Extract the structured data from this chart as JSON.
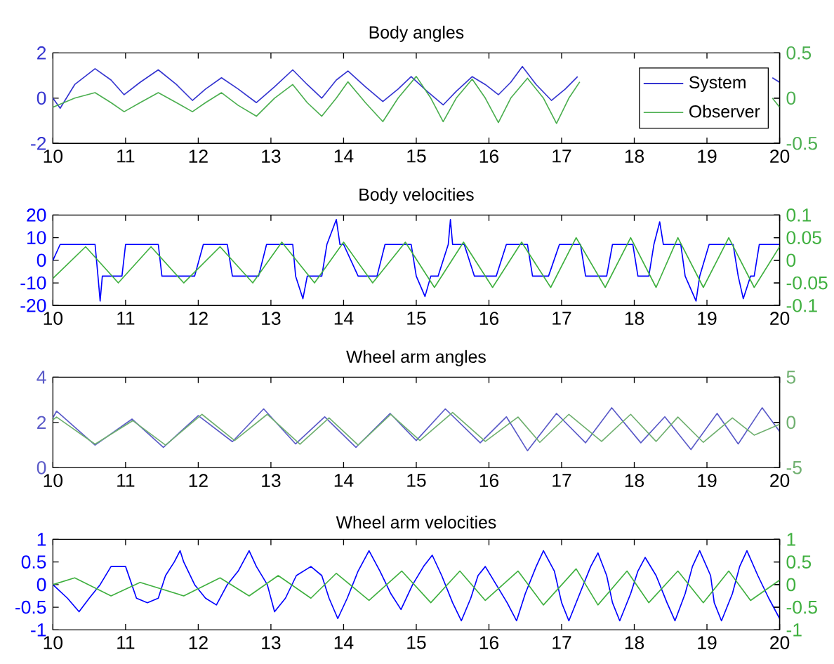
{
  "chart_data": [
    {
      "type": "line",
      "title": "Body angles",
      "xlim": [
        10,
        20
      ],
      "xticks": [
        10,
        11,
        12,
        13,
        14,
        15,
        16,
        17,
        18,
        19,
        20
      ],
      "ylim": [
        -2,
        2
      ],
      "yticks": [
        -2,
        0,
        2
      ],
      "y2lim": [
        -0.5,
        0.5
      ],
      "y2ticks": [
        -0.5,
        0,
        0.5
      ],
      "legend": "right",
      "series": [
        {
          "name": "System",
          "color": "#3535d0",
          "x": [
            10,
            10.1,
            10.3,
            10.58,
            10.8,
            10.98,
            11.2,
            11.45,
            11.7,
            11.92,
            12.1,
            12.32,
            12.55,
            12.8,
            13.05,
            13.3,
            13.5,
            13.7,
            13.9,
            14.06,
            14.3,
            14.54,
            14.75,
            14.93,
            15.15,
            15.37,
            15.55,
            15.77,
            15.95,
            16.13,
            16.3,
            16.46,
            16.65,
            16.86,
            17.05,
            17.22,
            17.6,
            18.5,
            19.4,
            19.9,
            20
          ],
          "values": [
            0,
            -0.45,
            0.6,
            1.3,
            0.8,
            0.15,
            0.7,
            1.25,
            0.6,
            -0.1,
            0.4,
            0.9,
            0.4,
            -0.2,
            0.5,
            1.25,
            0.6,
            0,
            0.8,
            1.2,
            0.5,
            -0.15,
            0.4,
            0.95,
            0.3,
            -0.3,
            0.3,
            0.95,
            0.6,
            0.15,
            0.7,
            1.4,
            0.6,
            -0.1,
            0.4,
            0.95,
            null,
            null,
            null,
            0.9,
            0.7
          ]
        },
        {
          "name": "Observer",
          "color": "#4caf50",
          "axis": "y2",
          "x": [
            10,
            10.3,
            10.58,
            10.8,
            10.98,
            11.2,
            11.45,
            11.7,
            11.92,
            12.1,
            12.32,
            12.55,
            12.8,
            13.05,
            13.3,
            13.5,
            13.7,
            13.9,
            14.06,
            14.3,
            14.54,
            14.75,
            15.0,
            15.2,
            15.37,
            15.55,
            15.77,
            15.95,
            16.13,
            16.3,
            16.53,
            16.75,
            16.93,
            17.1,
            17.25,
            17.6,
            18.5,
            19.4,
            19.9,
            20
          ],
          "values": [
            -0.1,
            0.0,
            0.06,
            -0.05,
            -0.15,
            -0.05,
            0.06,
            -0.05,
            -0.15,
            -0.05,
            0.06,
            -0.08,
            -0.2,
            0.0,
            0.15,
            -0.05,
            -0.2,
            0.0,
            0.18,
            -0.05,
            -0.26,
            0.0,
            0.24,
            0.0,
            -0.26,
            0.0,
            0.21,
            0.0,
            -0.27,
            0.0,
            0.22,
            0.0,
            -0.28,
            0.0,
            0.18,
            null,
            null,
            null,
            0.0,
            -0.1
          ]
        }
      ]
    },
    {
      "type": "line",
      "title": "Body velocities",
      "xlim": [
        10,
        20
      ],
      "xticks": [
        10,
        11,
        12,
        13,
        14,
        15,
        16,
        17,
        18,
        19,
        20
      ],
      "ylim": [
        -20,
        20
      ],
      "yticks": [
        -20,
        -10,
        0,
        10,
        20
      ],
      "y2lim": [
        -0.1,
        0.1
      ],
      "y2ticks": [
        -0.1,
        -0.05,
        0,
        0.05,
        0.1
      ],
      "series": [
        {
          "color": "#0000ff",
          "x": [
            10,
            10.1,
            10.58,
            10.62,
            10.65,
            10.68,
            10.95,
            11,
            11.45,
            11.5,
            11.95,
            12.07,
            12.4,
            12.47,
            12.83,
            12.94,
            13.3,
            13.34,
            13.44,
            13.5,
            13.7,
            13.77,
            13.9,
            13.95,
            14,
            14.1,
            14.2,
            14.46,
            14.57,
            14.93,
            15,
            15.12,
            15.2,
            15.3,
            15.44,
            15.47,
            15.5,
            15.66,
            15.8,
            16.1,
            16.24,
            16.53,
            16.6,
            16.82,
            16.97,
            17.26,
            17.33,
            17.62,
            17.7,
            17.98,
            18.05,
            18.2,
            18.27,
            18.35,
            18.4,
            18.64,
            18.7,
            18.85,
            18.9,
            19.03,
            19.36,
            19.43,
            19.5,
            19.6,
            19.65,
            19.72,
            20
          ],
          "values": [
            0,
            7,
            7,
            -7,
            -18,
            -7,
            -7,
            7,
            7,
            -7,
            -7,
            7,
            7,
            -7,
            -7,
            7,
            7,
            -7,
            -17,
            -7,
            -7,
            7,
            18,
            7,
            7,
            0,
            -7,
            -7,
            7,
            7,
            -7,
            -16,
            -7,
            -7,
            7,
            18,
            7,
            7,
            -7,
            -7,
            7,
            7,
            -7,
            -7,
            7,
            7,
            -7,
            -7,
            7,
            7,
            -7,
            -7,
            7,
            17,
            7,
            7,
            -7,
            -18,
            -7,
            7,
            7,
            -7,
            -17,
            -7,
            -7,
            7,
            7
          ]
        },
        {
          "color": "#40b040",
          "axis": "y2",
          "x": [
            10,
            10.45,
            10.9,
            11.35,
            11.8,
            12.3,
            12.75,
            13.15,
            13.6,
            14.0,
            14.4,
            14.85,
            15.25,
            15.65,
            16.05,
            16.45,
            16.85,
            17.2,
            17.6,
            17.95,
            18.3,
            18.6,
            18.95,
            19.3,
            19.65,
            20
          ],
          "values": [
            -0.04,
            0.03,
            -0.05,
            0.03,
            -0.05,
            0.03,
            -0.05,
            0.04,
            -0.05,
            0.04,
            -0.05,
            0.04,
            -0.06,
            0.04,
            -0.06,
            0.04,
            -0.06,
            0.05,
            -0.06,
            0.05,
            -0.06,
            0.05,
            -0.06,
            0.05,
            -0.06,
            0.03
          ]
        }
      ]
    },
    {
      "type": "line",
      "title": "Wheel arm angles",
      "xlim": [
        10,
        20
      ],
      "xticks": [
        10,
        11,
        12,
        13,
        14,
        15,
        16,
        17,
        18,
        19,
        20
      ],
      "ylim": [
        0,
        4
      ],
      "yticks": [
        0,
        2,
        4
      ],
      "y2lim": [
        -5,
        5
      ],
      "y2ticks": [
        -5,
        0,
        5
      ],
      "series": [
        {
          "color": "#5a5ac8",
          "x": [
            10,
            10.05,
            10.58,
            11.09,
            11.52,
            12.0,
            12.47,
            12.9,
            13.34,
            13.74,
            14.17,
            14.64,
            15.0,
            15.4,
            15.88,
            16.24,
            16.53,
            16.93,
            17.33,
            17.69,
            18.09,
            18.42,
            18.78,
            19.14,
            19.43,
            19.76,
            20
          ],
          "values": [
            2.2,
            2.5,
            1.0,
            2.15,
            0.9,
            2.3,
            1.15,
            2.6,
            1.05,
            2.25,
            0.9,
            2.4,
            1.2,
            2.6,
            1.1,
            2.25,
            0.75,
            2.4,
            1.1,
            2.65,
            1.1,
            2.25,
            0.8,
            2.4,
            1.05,
            2.65,
            1.6
          ]
        },
        {
          "color": "#70b070",
          "axis": "y2",
          "x": [
            10,
            10.05,
            10.58,
            11.1,
            11.55,
            12.05,
            12.5,
            12.95,
            13.4,
            13.8,
            14.2,
            14.65,
            15.05,
            15.5,
            15.95,
            16.4,
            16.7,
            17.1,
            17.55,
            17.95,
            18.3,
            18.6,
            18.95,
            19.35,
            19.65,
            20
          ],
          "values": [
            0.3,
            0.6,
            -2.4,
            0.2,
            -2.5,
            0.9,
            -2.0,
            0.9,
            -2.4,
            0.5,
            -2.5,
            0.9,
            -2.0,
            1.1,
            -2.1,
            0.6,
            -2.2,
            0.9,
            -2.1,
            0.9,
            -2.1,
            0.6,
            -2.2,
            0.5,
            -1.4,
            -0.2
          ]
        }
      ]
    },
    {
      "type": "line",
      "title": "Wheel arm velocities",
      "xlim": [
        10,
        20
      ],
      "xticks": [
        10,
        11,
        12,
        13,
        14,
        15,
        16,
        17,
        18,
        19,
        20
      ],
      "ylim": [
        -1,
        1
      ],
      "yticks": [
        -1,
        -0.5,
        0,
        0.5,
        1
      ],
      "y2lim": [
        -1,
        1
      ],
      "y2ticks": [
        -1,
        -0.5,
        0,
        0.5,
        1
      ],
      "series": [
        {
          "color": "#0000ff",
          "x": [
            10,
            10.2,
            10.36,
            10.5,
            10.65,
            10.8,
            11.0,
            11.15,
            11.3,
            11.45,
            11.55,
            11.67,
            11.75,
            11.8,
            11.95,
            12.1,
            12.25,
            12.4,
            12.55,
            12.7,
            12.8,
            12.95,
            13.05,
            13.2,
            13.35,
            13.55,
            13.7,
            13.8,
            13.92,
            14.05,
            14.2,
            14.35,
            14.5,
            14.65,
            14.79,
            14.95,
            15.1,
            15.22,
            15.35,
            15.5,
            15.62,
            15.75,
            15.85,
            15.95,
            16.1,
            16.25,
            16.38,
            16.5,
            16.65,
            16.75,
            16.9,
            17.0,
            17.1,
            17.25,
            17.4,
            17.5,
            17.62,
            17.7,
            17.8,
            17.95,
            18.05,
            18.15,
            18.3,
            18.45,
            18.56,
            18.7,
            18.8,
            18.9,
            19.05,
            19.1,
            19.2,
            19.35,
            19.45,
            19.55,
            19.7,
            19.85,
            20
          ],
          "values": [
            0,
            -0.3,
            -0.6,
            -0.3,
            0,
            0.4,
            0.4,
            -0.3,
            -0.4,
            -0.3,
            0.2,
            0.5,
            0.75,
            0.5,
            0,
            -0.3,
            -0.45,
            0,
            0.3,
            0.75,
            0.4,
            0,
            -0.6,
            -0.3,
            0.2,
            0.4,
            0.2,
            -0.3,
            -0.75,
            -0.3,
            0.3,
            0.75,
            0.3,
            -0.2,
            -0.55,
            0,
            0.4,
            0.65,
            0.2,
            -0.4,
            -0.8,
            -0.3,
            0.2,
            0.4,
            0,
            -0.4,
            -0.8,
            -0.2,
            0.4,
            0.75,
            0.3,
            -0.4,
            -0.8,
            -0.2,
            0.4,
            0.7,
            0.2,
            -0.4,
            -0.8,
            -0.2,
            0.3,
            0.6,
            0.2,
            -0.4,
            -0.8,
            -0.2,
            0.4,
            0.75,
            0.2,
            -0.4,
            -0.8,
            -0.2,
            0.4,
            0.75,
            0.2,
            -0.3,
            -0.75
          ]
        },
        {
          "color": "#40b040",
          "axis": "y2",
          "x": [
            10,
            10.3,
            10.8,
            11.2,
            11.8,
            12.3,
            12.7,
            13.1,
            13.55,
            13.9,
            14.35,
            14.8,
            15.2,
            15.6,
            15.95,
            16.4,
            16.75,
            17.2,
            17.5,
            17.9,
            18.2,
            18.6,
            18.95,
            19.3,
            19.6,
            20
          ],
          "values": [
            0,
            0.15,
            -0.25,
            0.05,
            -0.25,
            0.15,
            -0.25,
            0.2,
            -0.3,
            0.25,
            -0.35,
            0.3,
            -0.4,
            0.3,
            -0.35,
            0.3,
            -0.45,
            0.35,
            -0.45,
            0.3,
            -0.4,
            0.3,
            -0.4,
            0.3,
            -0.35,
            0.1
          ]
        }
      ]
    }
  ]
}
